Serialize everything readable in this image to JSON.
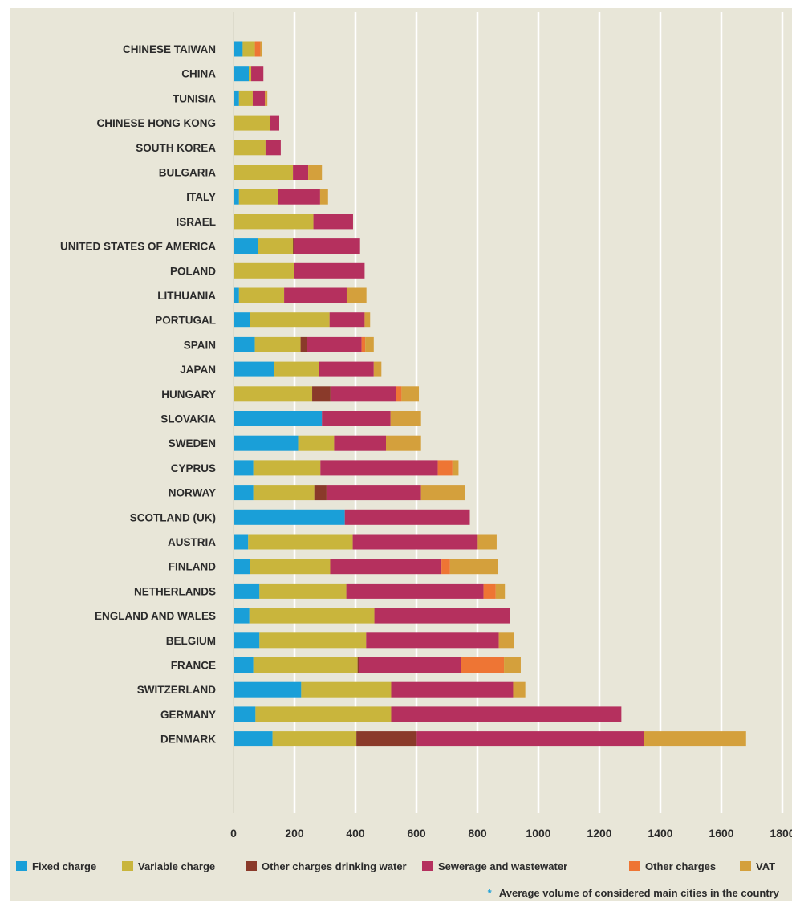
{
  "footnote": {
    "marker": "*",
    "text": "Average volume of considered main cities in the country"
  },
  "chart_data": {
    "type": "bar",
    "orientation": "horizontal",
    "stacked": true,
    "grid": true,
    "legend_position": "bottom",
    "xlim": [
      0,
      1800
    ],
    "x_ticks": [
      "0",
      "200",
      "400",
      "600",
      "800",
      "1000",
      "1200",
      "1400",
      "1600",
      "1800"
    ],
    "categories": [
      "CHINESE TAIWAN",
      "CHINA",
      "TUNISIA",
      "CHINESE HONG KONG",
      "SOUTH KOREA",
      "BULGARIA",
      "ITALY",
      "ISRAEL",
      "UNITED STATES OF AMERICA",
      "POLAND",
      "LITHUANIA",
      "PORTUGAL",
      "SPAIN",
      "JAPAN",
      "HUNGARY",
      "SLOVAKIA",
      "SWEDEN",
      "CYPRUS",
      "NORWAY",
      "SCOTLAND (UK)",
      "AUSTRIA",
      "FINLAND",
      "NETHERLANDS",
      "ENGLAND AND WALES",
      "BELGIUM",
      "FRANCE",
      "SWITZERLAND",
      "GERMANY",
      "DENMARK"
    ],
    "series": [
      {
        "name": "Fixed charge",
        "color": "#1a9fd8",
        "values": [
          30,
          50,
          18,
          0,
          0,
          0,
          18,
          0,
          80,
          0,
          18,
          55,
          70,
          132,
          0,
          290,
          212,
          65,
          65,
          365,
          48,
          55,
          85,
          52,
          85,
          65,
          222,
          72,
          128
        ]
      },
      {
        "name": "Variable charge",
        "color": "#c9b53c",
        "values": [
          40,
          8,
          45,
          120,
          105,
          195,
          128,
          262,
          115,
          200,
          148,
          260,
          150,
          148,
          258,
          0,
          118,
          220,
          200,
          0,
          343,
          262,
          285,
          410,
          350,
          342,
          295,
          445,
          275
        ]
      },
      {
        "name": "Other charges drinking water",
        "color": "#8a3a2a",
        "values": [
          0,
          0,
          0,
          0,
          0,
          0,
          0,
          0,
          5,
          0,
          0,
          0,
          20,
          0,
          60,
          0,
          0,
          0,
          40,
          0,
          0,
          0,
          0,
          0,
          0,
          5,
          0,
          0,
          198
        ]
      },
      {
        "name": "Sewerage and wastewater",
        "color": "#b5305e",
        "values": [
          0,
          40,
          40,
          30,
          50,
          50,
          138,
          130,
          215,
          230,
          205,
          115,
          180,
          180,
          215,
          225,
          170,
          385,
          310,
          410,
          410,
          365,
          450,
          445,
          435,
          335,
          400,
          755,
          745
        ]
      },
      {
        "name": "Other charges",
        "color": "#ee7534",
        "values": [
          18,
          0,
          0,
          0,
          0,
          0,
          0,
          0,
          0,
          0,
          0,
          0,
          12,
          0,
          18,
          0,
          0,
          48,
          0,
          0,
          0,
          28,
          40,
          0,
          0,
          140,
          0,
          0,
          0
        ]
      },
      {
        "name": "VAT",
        "color": "#d4a03c",
        "values": [
          5,
          0,
          8,
          0,
          0,
          45,
          26,
          0,
          0,
          0,
          65,
          18,
          28,
          25,
          57,
          100,
          115,
          20,
          145,
          0,
          62,
          158,
          30,
          0,
          50,
          55,
          40,
          0,
          335
        ]
      }
    ]
  }
}
